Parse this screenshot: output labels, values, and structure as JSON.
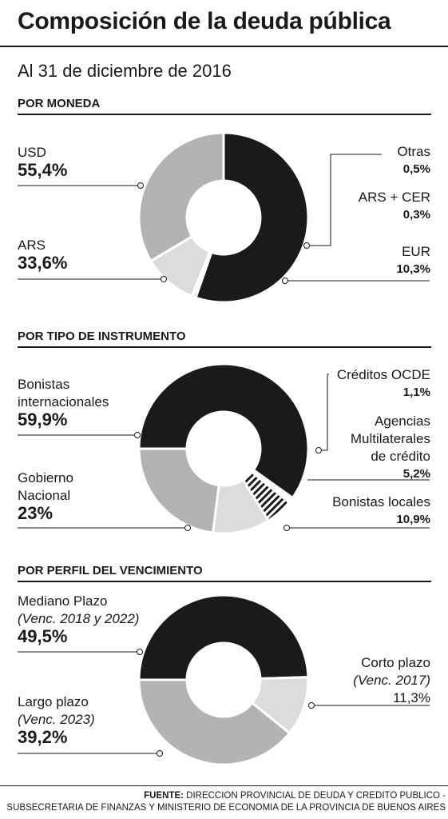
{
  "header": {
    "title": "Composición de la deuda pública",
    "subtitle": "Al 31 de diciembre de 2016"
  },
  "colors": {
    "black": "#1a1a1a",
    "gray": "#b3b3b3",
    "light": "#dcdcdc",
    "hatch": "hatched"
  },
  "chart_data": [
    {
      "type": "pie",
      "title": "POR MONEDA",
      "slices": [
        {
          "label": "USD",
          "value": "55,4%",
          "pct": 55.4,
          "color": "#1a1a1a"
        },
        {
          "label": "Otras",
          "value": "0,5%",
          "pct": 0.5,
          "color": "#1a1a1a"
        },
        {
          "label": "ARS + CER",
          "value": "0,3%",
          "pct": 0.3,
          "color": "#1a1a1a"
        },
        {
          "label": "EUR",
          "value": "10,3%",
          "pct": 10.3,
          "color": "#dcdcdc"
        },
        {
          "label": "ARS",
          "value": "33,6%",
          "pct": 33.6,
          "color": "#b3b3b3"
        }
      ]
    },
    {
      "type": "pie",
      "title": "POR TIPO DE INSTRUMENTO",
      "slices": [
        {
          "label": "Bonistas internacionales",
          "value": "59,9%",
          "pct": 59.9,
          "color": "#1a1a1a"
        },
        {
          "label": "Créditos OCDE",
          "value": "1,1%",
          "pct": 1.1,
          "color": "#ffffff"
        },
        {
          "label": "Agencias Multilaterales de crédito",
          "value": "5,2%",
          "pct": 5.2,
          "color": "hatch"
        },
        {
          "label": "Bonistas locales",
          "value": "10,9%",
          "pct": 10.9,
          "color": "#dcdcdc"
        },
        {
          "label": "Gobierno Nacional",
          "value": "23%",
          "pct": 23,
          "color": "#b3b3b3"
        }
      ]
    },
    {
      "type": "pie",
      "title": "POR PERFIL DEL VENCIMIENTO",
      "slices": [
        {
          "label": "Mediano Plazo",
          "note": "(Venc. 2018 y 2022)",
          "value": "49,5%",
          "pct": 49.5,
          "color": "#1a1a1a"
        },
        {
          "label": "Corto plazo",
          "note": "(Venc. 2017)",
          "value": "11,3%",
          "pct": 11.3,
          "color": "#dcdcdc"
        },
        {
          "label": "Largo plazo",
          "note": "(Venc. 2023)",
          "value": "39,2%",
          "pct": 39.2,
          "color": "#b3b3b3"
        }
      ]
    }
  ],
  "labels": {
    "c1": {
      "usd_name": "USD",
      "usd_val": "55,4%",
      "ars_name": "ARS",
      "ars_val": "33,6%",
      "otras_name": "Otras",
      "otras_val": "0,5%",
      "cer_name": "ARS + CER",
      "cer_val": "0,3%",
      "eur_name": "EUR",
      "eur_val": "10,3%"
    },
    "c2": {
      "bi_name1": "Bonistas",
      "bi_name2": "internacionales",
      "bi_val": "59,9%",
      "gn_name1": "Gobierno",
      "gn_name2": "Nacional",
      "gn_val": "23%",
      "ocde_name": "Créditos OCDE",
      "ocde_val": "1,1%",
      "am_name1": "Agencias",
      "am_name2": "Multilaterales",
      "am_name3": "de crédito",
      "am_val": "5,2%",
      "bl_name": "Bonistas locales",
      "bl_val": "10,9%"
    },
    "c3": {
      "mp_name": "Mediano Plazo",
      "mp_note": "(Venc. 2018 y 2022)",
      "mp_val": "49,5%",
      "lp_name": "Largo plazo",
      "lp_note": "(Venc. 2023)",
      "lp_val": "39,2%",
      "cp_name": "Corto plazo",
      "cp_note": "(Venc. 2017)",
      "cp_val": "11,3%"
    }
  },
  "footer": {
    "label": "FUENTE:",
    "line1": "DIRECCION PROVINCIAL DE DEUDA Y CREDITO PUBLICO -",
    "line2": "SUBSECRETARIA DE FINANZAS Y MINISTERIO DE ECONOMIA DE LA PROVINCIA DE BUENOS AIRES"
  }
}
